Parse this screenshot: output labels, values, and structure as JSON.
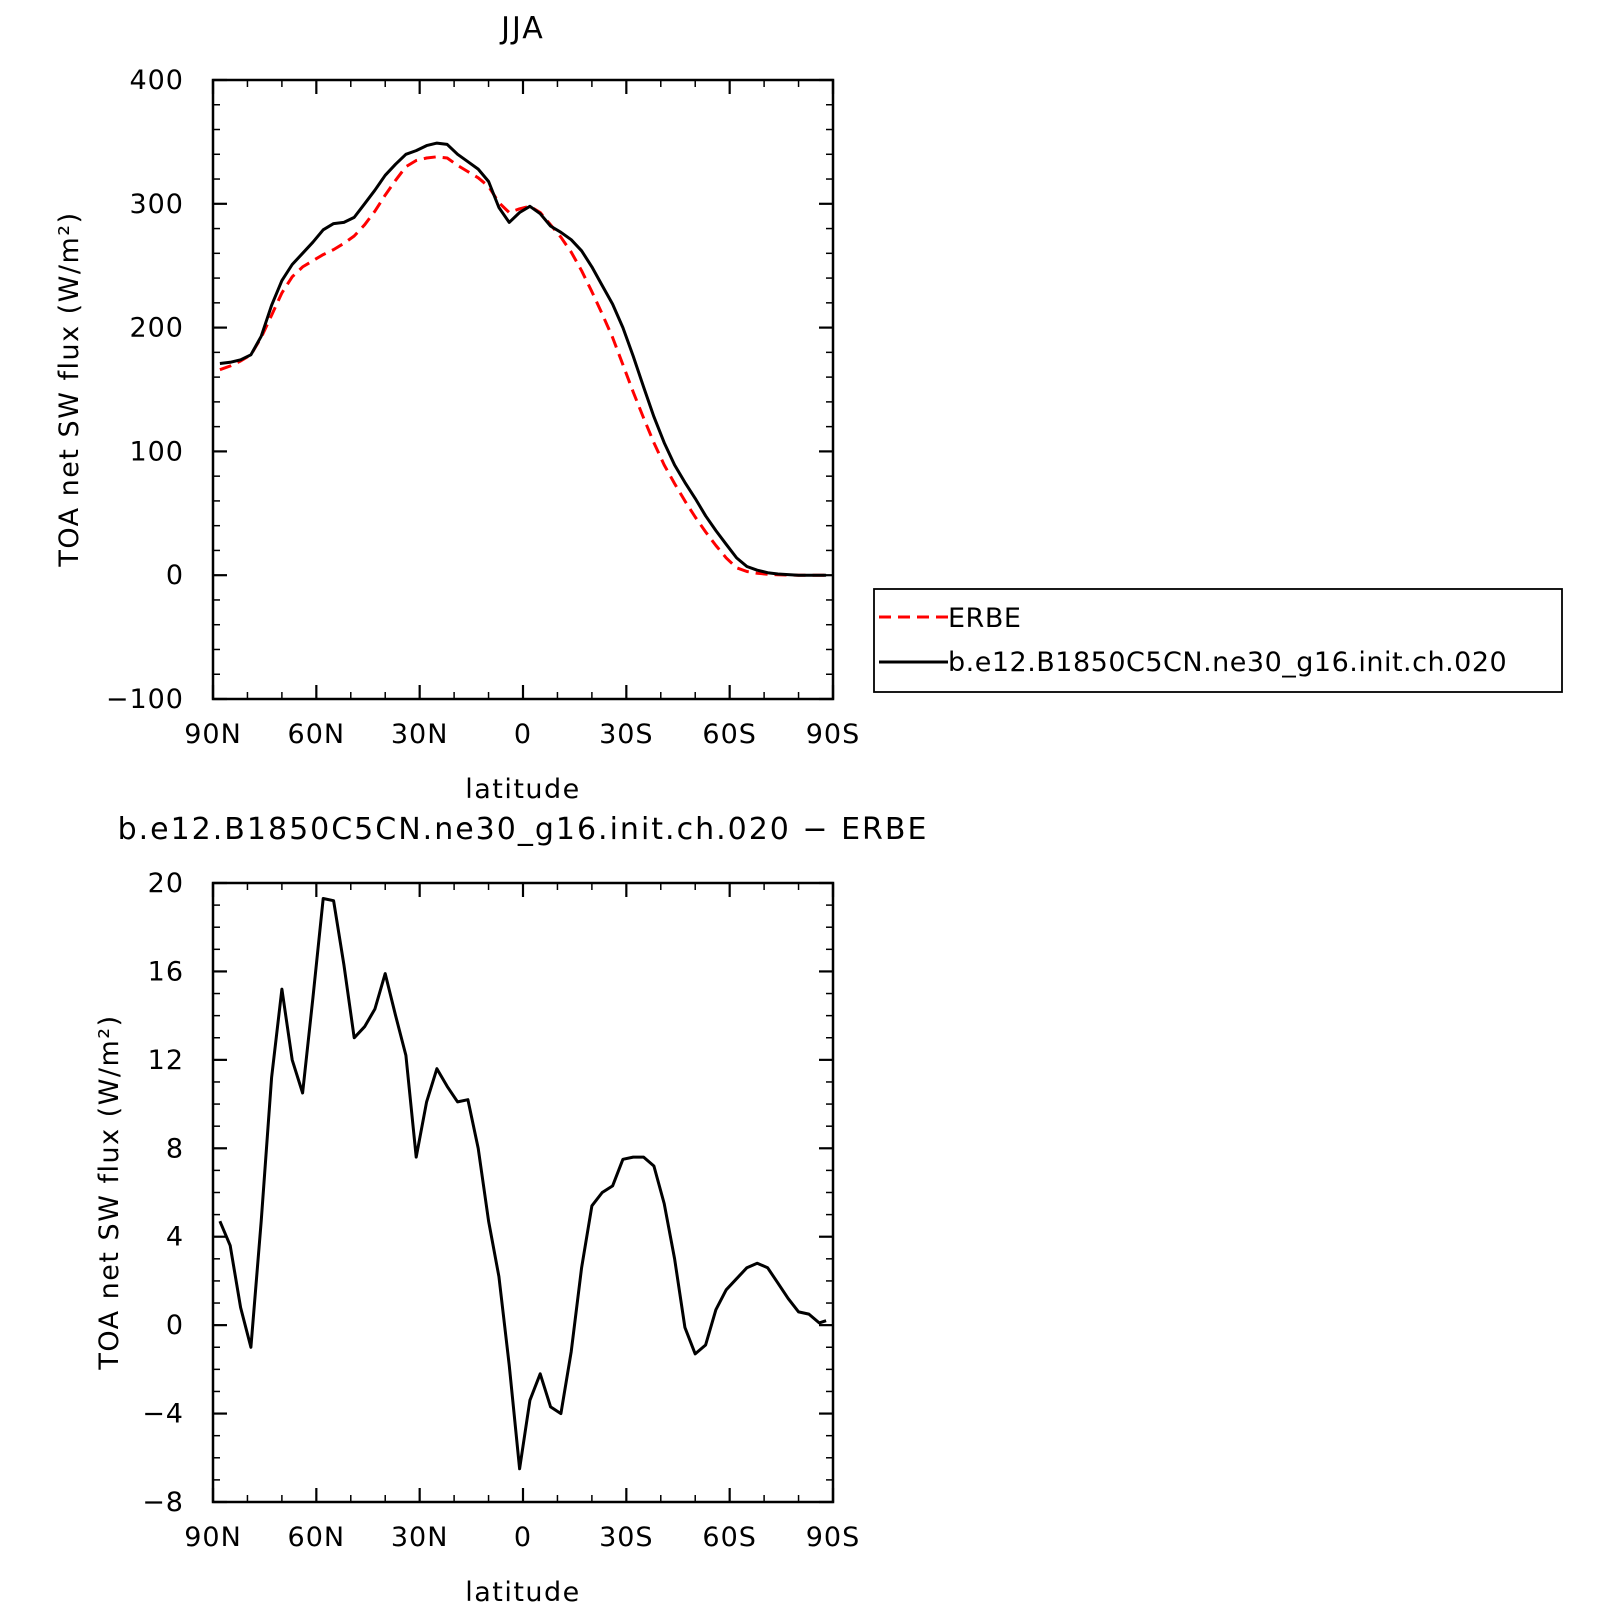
{
  "chart_data": [
    {
      "type": "line",
      "title": "JJA",
      "xlabel": "latitude",
      "ylabel": "TOA net SW flux (W/m²)",
      "xlim": [
        90,
        -90
      ],
      "ylim": [
        -100,
        400
      ],
      "xticks": [
        90,
        60,
        30,
        0,
        -30,
        -60,
        -90
      ],
      "xtick_labels": [
        "90N",
        "60N",
        "30N",
        "0",
        "30S",
        "60S",
        "90S"
      ],
      "yticks": [
        -100,
        0,
        100,
        200,
        300,
        400
      ],
      "ytick_labels": [
        "−100",
        "0",
        "100",
        "200",
        "300",
        "400"
      ],
      "legend_position": "right, outside plot",
      "series": [
        {
          "name": "ERBE",
          "color": "#ff0000",
          "dash": "dashed",
          "x": [
            88,
            85,
            82,
            79,
            76,
            73,
            70,
            67,
            64,
            61,
            58,
            55,
            52,
            49,
            46,
            43,
            40,
            37,
            34,
            31,
            28,
            25,
            22,
            19,
            16,
            13,
            10,
            7,
            4,
            1,
            -2,
            -5,
            -8,
            -11,
            -14,
            -17,
            -20,
            -23,
            -26,
            -29,
            -32,
            -35,
            -38,
            -41,
            -44,
            -47,
            -50,
            -53,
            -56,
            -59,
            -62,
            -65,
            -68,
            -71,
            -74,
            -77,
            -80,
            -83,
            -86,
            -88
          ],
          "y": [
            166,
            169,
            173,
            178,
            192,
            210,
            228,
            241,
            249,
            254,
            259,
            263,
            268,
            274,
            283,
            294,
            307,
            319,
            330,
            335,
            337,
            338,
            337,
            331,
            326,
            321,
            314,
            301,
            293,
            296,
            298,
            293,
            283,
            273,
            261,
            246,
            229,
            211,
            192,
            170,
            148,
            127,
            107,
            89,
            74,
            60,
            47,
            35,
            24,
            14,
            6,
            3,
            1.5,
            0.8,
            0.3,
            0.1,
            0,
            0,
            0,
            0
          ]
        },
        {
          "name": "b.e12.B1850C5CN.ne30_g16.init.ch.020",
          "color": "#000000",
          "dash": "solid",
          "x": [
            88,
            85,
            82,
            79,
            76,
            73,
            70,
            67,
            64,
            61,
            58,
            55,
            52,
            49,
            46,
            43,
            40,
            37,
            34,
            31,
            28,
            25,
            22,
            19,
            16,
            13,
            10,
            7,
            4,
            1,
            -2,
            -5,
            -8,
            -11,
            -14,
            -17,
            -20,
            -23,
            -26,
            -29,
            -32,
            -35,
            -38,
            -41,
            -44,
            -47,
            -50,
            -53,
            -56,
            -59,
            -62,
            -65,
            -68,
            -71,
            -74,
            -77,
            -80,
            -83,
            -86,
            -88
          ],
          "y": [
            171,
            172,
            174,
            178,
            193,
            218,
            238,
            251,
            260,
            269,
            279,
            284,
            285,
            289,
            300,
            311,
            323,
            332,
            340,
            343,
            347,
            349,
            348,
            340,
            334,
            328,
            318,
            297,
            285,
            293,
            298,
            292,
            282,
            277,
            271,
            262,
            249,
            234,
            219,
            200,
            177,
            152,
            128,
            107,
            89,
            75,
            62,
            48,
            36,
            25,
            14,
            7,
            4,
            2,
            1,
            0.5,
            0,
            0,
            0,
            0
          ]
        }
      ]
    },
    {
      "type": "line",
      "title": "b.e12.B1850C5CN.ne30_g16.init.ch.020 − ERBE",
      "xlabel": "latitude",
      "ylabel": "TOA net SW flux (W/m²)",
      "xlim": [
        90,
        -90
      ],
      "ylim": [
        -8,
        20
      ],
      "xticks": [
        90,
        60,
        30,
        0,
        -30,
        -60,
        -90
      ],
      "xtick_labels": [
        "90N",
        "60N",
        "30N",
        "0",
        "30S",
        "60S",
        "90S"
      ],
      "yticks": [
        -8,
        -4,
        0,
        4,
        8,
        12,
        16,
        20
      ],
      "ytick_labels": [
        "−8",
        "−4",
        "0",
        "4",
        "8",
        "12",
        "16",
        "20"
      ],
      "series": [
        {
          "color": "#000000",
          "dash": "solid",
          "x": [
            88,
            85,
            82,
            79,
            76,
            73,
            70,
            67,
            64,
            61,
            58,
            55,
            52,
            49,
            46,
            43,
            40,
            37,
            34,
            31,
            28,
            25,
            22,
            19,
            16,
            13,
            10,
            7,
            4,
            1,
            -2,
            -5,
            -8,
            -11,
            -14,
            -17,
            -20,
            -23,
            -26,
            -29,
            -32,
            -35,
            -38,
            -41,
            -44,
            -47,
            -50,
            -53,
            -56,
            -59,
            -62,
            -65,
            -68,
            -71,
            -74,
            -77,
            -80,
            -83,
            -86,
            -88
          ],
          "y": [
            4.7,
            3.6,
            0.8,
            -1.0,
            4.7,
            11.2,
            15.2,
            12.0,
            10.5,
            14.8,
            19.3,
            19.2,
            16.3,
            13.0,
            13.5,
            14.3,
            15.9,
            14.0,
            12.2,
            7.6,
            10.1,
            11.6,
            10.8,
            10.1,
            10.2,
            8.0,
            4.7,
            2.2,
            -1.8,
            -6.5,
            -3.4,
            -2.2,
            -3.7,
            -4.0,
            -1.2,
            2.6,
            5.4,
            6.0,
            6.3,
            7.5,
            7.6,
            7.6,
            7.2,
            5.5,
            3.0,
            -0.1,
            -1.3,
            -0.9,
            0.7,
            1.6,
            2.1,
            2.6,
            2.8,
            2.6,
            1.9,
            1.2,
            0.6,
            0.5,
            0.1,
            0.2
          ]
        }
      ]
    }
  ]
}
